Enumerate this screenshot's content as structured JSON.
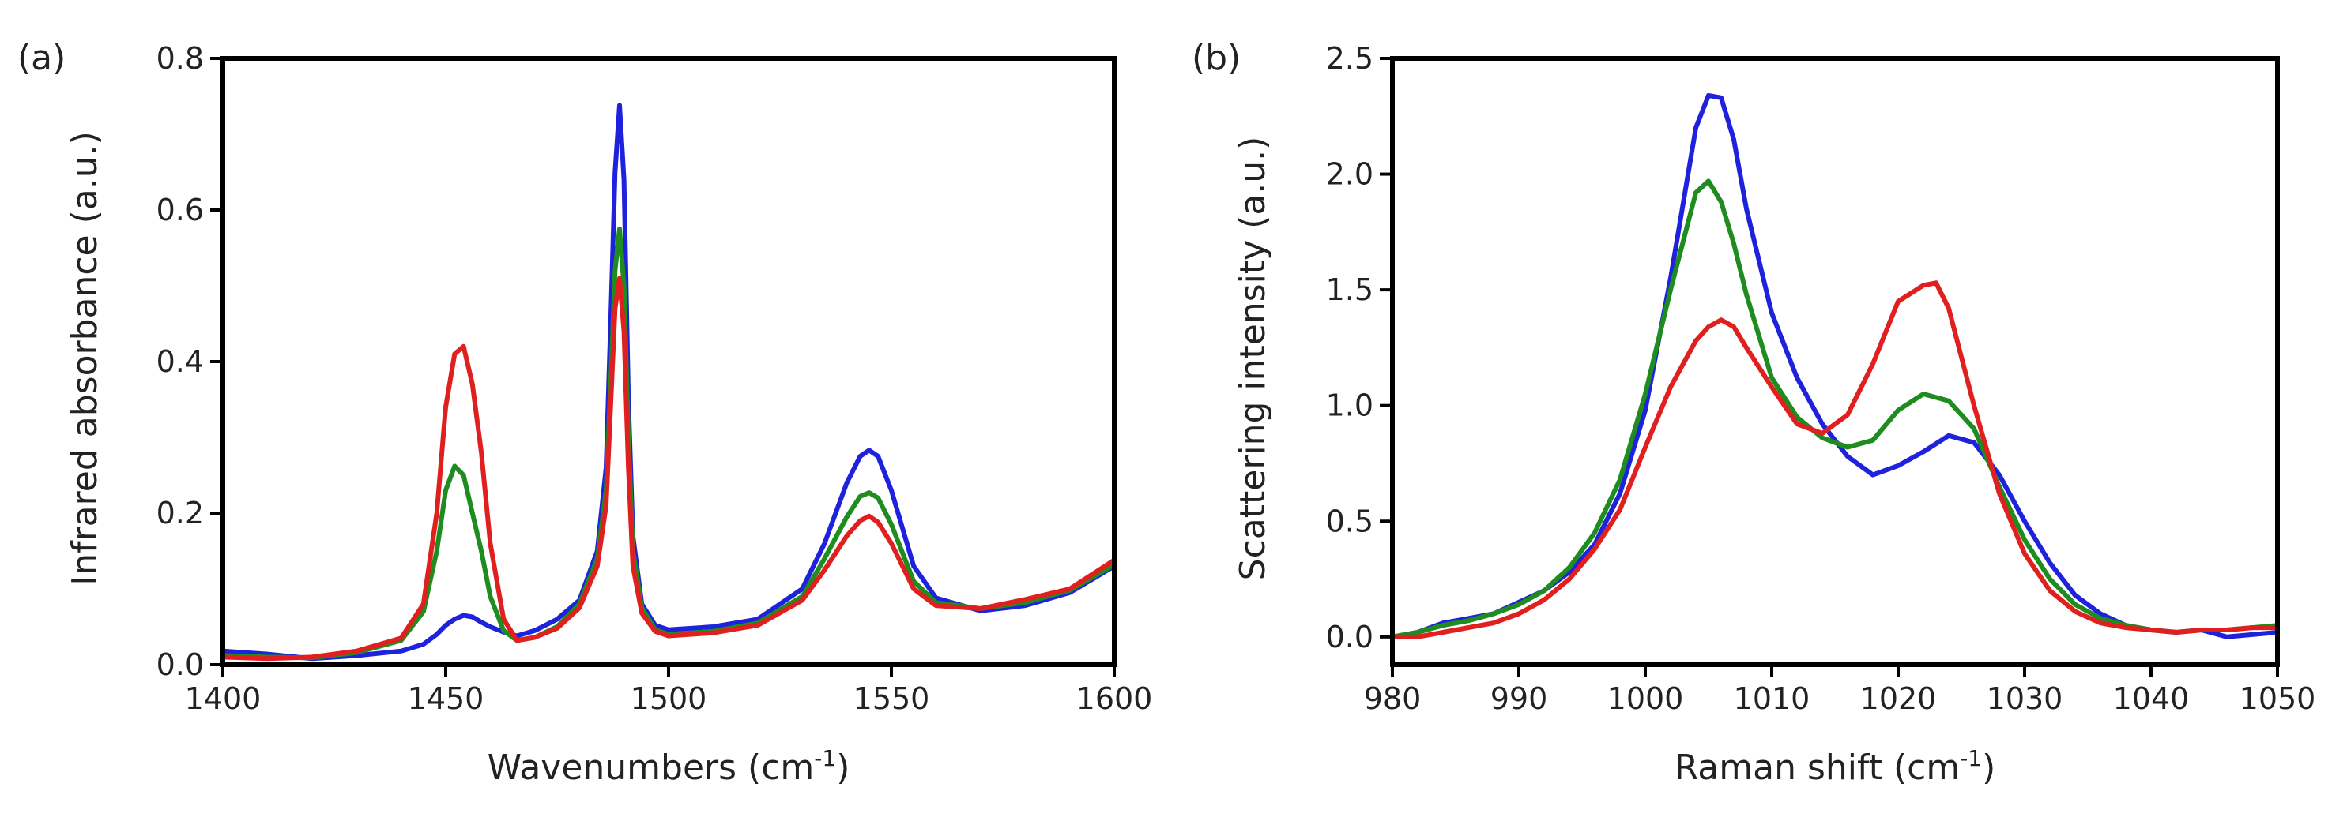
{
  "chart_data": [
    {
      "type": "line",
      "panel": "(a)",
      "xlabel": "Wavenumbers (cm",
      "xlabel_sup": "-1",
      "xlabel_end": ")",
      "ylabel": "Infrared absorbance (a.u.)",
      "xlim": [
        1400,
        1600
      ],
      "ylim": [
        0,
        0.8
      ],
      "xticks": [
        1400,
        1450,
        1500,
        1550,
        1600
      ],
      "xtick_labels": [
        "1400",
        "1450",
        "1500",
        "1550",
        "1600"
      ],
      "yticks": [
        0,
        0.2,
        0.4,
        0.6,
        0.8
      ],
      "ytick_labels": [
        "0.0",
        "0.2",
        "0.4",
        "0.6",
        "0.8"
      ],
      "series": [
        {
          "name": "blue",
          "color": "#1f22dc",
          "x": [
            1400,
            1410,
            1420,
            1430,
            1440,
            1445,
            1448,
            1450,
            1452,
            1454,
            1456,
            1458,
            1460,
            1463,
            1466,
            1470,
            1475,
            1480,
            1484,
            1486,
            1487,
            1488,
            1489,
            1490,
            1491,
            1492,
            1494,
            1497,
            1500,
            1510,
            1520,
            1530,
            1535,
            1540,
            1543,
            1545,
            1547,
            1550,
            1555,
            1560,
            1570,
            1580,
            1590,
            1600
          ],
          "y": [
            0.018,
            0.014,
            0.008,
            0.012,
            0.018,
            0.027,
            0.04,
            0.052,
            0.06,
            0.065,
            0.063,
            0.056,
            0.05,
            0.043,
            0.038,
            0.045,
            0.06,
            0.085,
            0.15,
            0.26,
            0.45,
            0.65,
            0.738,
            0.64,
            0.35,
            0.17,
            0.08,
            0.052,
            0.046,
            0.05,
            0.06,
            0.1,
            0.16,
            0.24,
            0.275,
            0.283,
            0.275,
            0.23,
            0.13,
            0.088,
            0.071,
            0.078,
            0.095,
            0.13
          ]
        },
        {
          "name": "green",
          "color": "#1f8c1f",
          "x": [
            1400,
            1410,
            1420,
            1430,
            1440,
            1445,
            1448,
            1450,
            1452,
            1454,
            1456,
            1458,
            1460,
            1463,
            1466,
            1470,
            1475,
            1480,
            1484,
            1486,
            1487,
            1488,
            1489,
            1490,
            1491,
            1492,
            1494,
            1497,
            1500,
            1510,
            1520,
            1530,
            1535,
            1540,
            1543,
            1545,
            1547,
            1550,
            1555,
            1560,
            1570,
            1580,
            1590,
            1600
          ],
          "y": [
            0.012,
            0.01,
            0.009,
            0.016,
            0.032,
            0.07,
            0.15,
            0.23,
            0.262,
            0.25,
            0.2,
            0.15,
            0.09,
            0.045,
            0.032,
            0.036,
            0.05,
            0.08,
            0.14,
            0.23,
            0.37,
            0.52,
            0.575,
            0.5,
            0.3,
            0.15,
            0.075,
            0.046,
            0.04,
            0.044,
            0.055,
            0.09,
            0.14,
            0.195,
            0.222,
            0.227,
            0.22,
            0.185,
            0.11,
            0.082,
            0.074,
            0.082,
            0.098,
            0.132
          ]
        },
        {
          "name": "red",
          "color": "#e0201f",
          "x": [
            1400,
            1410,
            1420,
            1430,
            1440,
            1445,
            1448,
            1450,
            1452,
            1454,
            1456,
            1458,
            1460,
            1463,
            1466,
            1470,
            1475,
            1480,
            1484,
            1486,
            1487,
            1488,
            1489,
            1490,
            1491,
            1492,
            1494,
            1497,
            1500,
            1510,
            1520,
            1530,
            1535,
            1540,
            1543,
            1545,
            1547,
            1550,
            1555,
            1560,
            1570,
            1580,
            1590,
            1600
          ],
          "y": [
            0.01,
            0.008,
            0.01,
            0.018,
            0.035,
            0.08,
            0.2,
            0.34,
            0.41,
            0.42,
            0.37,
            0.28,
            0.16,
            0.06,
            0.032,
            0.036,
            0.048,
            0.075,
            0.13,
            0.21,
            0.34,
            0.47,
            0.51,
            0.44,
            0.26,
            0.13,
            0.068,
            0.044,
            0.038,
            0.042,
            0.052,
            0.085,
            0.125,
            0.17,
            0.19,
            0.196,
            0.188,
            0.16,
            0.1,
            0.078,
            0.074,
            0.086,
            0.1,
            0.138
          ]
        }
      ]
    },
    {
      "type": "line",
      "panel": "(b)",
      "xlabel": "Raman shift (cm",
      "xlabel_sup": "-1",
      "xlabel_end": ")",
      "ylabel": "Scattering intensity (a.u.)",
      "xlim": [
        980,
        1050
      ],
      "ylim": [
        -0.12,
        2.5
      ],
      "xticks": [
        980,
        990,
        1000,
        1010,
        1020,
        1030,
        1040,
        1050
      ],
      "xtick_labels": [
        "980",
        "990",
        "1000",
        "1010",
        "1020",
        "1030",
        "1040",
        "1050"
      ],
      "yticks": [
        0,
        0.5,
        1.0,
        1.5,
        2.0,
        2.5
      ],
      "ytick_labels": [
        "0.0",
        "0.5",
        "1.0",
        "1.5",
        "2.0",
        "2.5"
      ],
      "series": [
        {
          "name": "blue",
          "color": "#1f22dc",
          "x": [
            980,
            982,
            984,
            986,
            988,
            990,
            992,
            994,
            996,
            998,
            1000,
            1002,
            1004,
            1005,
            1006,
            1007,
            1008,
            1010,
            1012,
            1014,
            1016,
            1018,
            1020,
            1022,
            1024,
            1026,
            1028,
            1030,
            1032,
            1034,
            1036,
            1038,
            1040,
            1042,
            1044,
            1046,
            1048,
            1050
          ],
          "y": [
            0.0,
            0.02,
            0.06,
            0.08,
            0.1,
            0.15,
            0.2,
            0.28,
            0.4,
            0.62,
            0.98,
            1.55,
            2.2,
            2.34,
            2.33,
            2.15,
            1.85,
            1.4,
            1.12,
            0.92,
            0.78,
            0.7,
            0.74,
            0.8,
            0.87,
            0.84,
            0.7,
            0.5,
            0.32,
            0.18,
            0.1,
            0.05,
            0.03,
            0.02,
            0.03,
            0.0,
            0.01,
            0.02
          ]
        },
        {
          "name": "green",
          "color": "#1f8c1f",
          "x": [
            980,
            982,
            984,
            986,
            988,
            990,
            992,
            994,
            996,
            998,
            1000,
            1002,
            1004,
            1005,
            1006,
            1007,
            1008,
            1010,
            1012,
            1014,
            1016,
            1018,
            1020,
            1022,
            1024,
            1026,
            1028,
            1030,
            1032,
            1034,
            1036,
            1038,
            1040,
            1042,
            1044,
            1046,
            1048,
            1050
          ],
          "y": [
            0.0,
            0.02,
            0.05,
            0.07,
            0.1,
            0.14,
            0.2,
            0.3,
            0.45,
            0.68,
            1.05,
            1.5,
            1.92,
            1.97,
            1.88,
            1.7,
            1.48,
            1.12,
            0.95,
            0.86,
            0.82,
            0.85,
            0.98,
            1.05,
            1.02,
            0.9,
            0.65,
            0.42,
            0.25,
            0.14,
            0.08,
            0.05,
            0.03,
            0.02,
            0.03,
            0.03,
            0.04,
            0.05
          ]
        },
        {
          "name": "red",
          "color": "#e0201f",
          "x": [
            980,
            982,
            984,
            986,
            988,
            990,
            992,
            994,
            996,
            998,
            1000,
            1002,
            1004,
            1005,
            1006,
            1007,
            1008,
            1010,
            1012,
            1014,
            1016,
            1018,
            1020,
            1022,
            1023,
            1024,
            1026,
            1028,
            1030,
            1032,
            1034,
            1036,
            1038,
            1040,
            1042,
            1044,
            1046,
            1048,
            1050
          ],
          "y": [
            0.0,
            0.0,
            0.02,
            0.04,
            0.06,
            0.1,
            0.16,
            0.25,
            0.38,
            0.55,
            0.82,
            1.08,
            1.28,
            1.34,
            1.37,
            1.34,
            1.25,
            1.08,
            0.92,
            0.88,
            0.96,
            1.18,
            1.45,
            1.52,
            1.53,
            1.42,
            1.0,
            0.62,
            0.36,
            0.2,
            0.11,
            0.06,
            0.04,
            0.03,
            0.02,
            0.03,
            0.03,
            0.04,
            0.04
          ]
        }
      ]
    }
  ]
}
